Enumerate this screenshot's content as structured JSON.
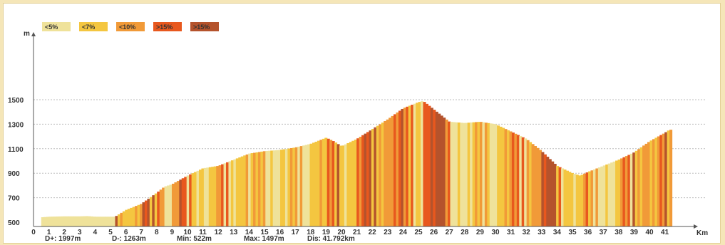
{
  "chart_data": {
    "type": "area",
    "ylabel": "m",
    "xlabel": "Km",
    "yticks": [
      500,
      700,
      900,
      1100,
      1300,
      1500
    ],
    "xticks": [
      0,
      1,
      2,
      3,
      4,
      5,
      6,
      7,
      8,
      9,
      10,
      11,
      12,
      13,
      14,
      15,
      16,
      17,
      18,
      19,
      20,
      21,
      22,
      23,
      24,
      25,
      26,
      27,
      28,
      29,
      30,
      31,
      32,
      33,
      34,
      35,
      36,
      37,
      38,
      39,
      40,
      41
    ],
    "ylim": [
      500,
      1500
    ],
    "xlim": [
      0,
      42
    ],
    "grid": true,
    "legend": {
      "placement": "top-left",
      "items": [
        {
          "label": "<5%",
          "color": "#efe29a"
        },
        {
          "label": "<7%",
          "color": "#f4c640"
        },
        {
          "label": "<10%",
          "color": "#f19a38"
        },
        {
          "label": ">15%",
          "color": "#e8581e"
        },
        {
          "label": ">15%",
          "color": "#b5532c"
        }
      ]
    },
    "profile": {
      "x": [
        0.5,
        1,
        2,
        3,
        3.5,
        4,
        5,
        5.3,
        6,
        7,
        8,
        8.5,
        9,
        10,
        11,
        12,
        13,
        14,
        15,
        16,
        17,
        18,
        19,
        19.5,
        20,
        21,
        22,
        23,
        24,
        25,
        25.3,
        26,
        27,
        28,
        29,
        30,
        31,
        32,
        33,
        34,
        35,
        35.5,
        36,
        37,
        38,
        39,
        40,
        41,
        41.3
      ],
      "y": [
        540,
        545,
        548,
        548,
        550,
        545,
        545,
        545,
        600,
        650,
        740,
        790,
        810,
        880,
        940,
        960,
        1010,
        1060,
        1080,
        1090,
        1110,
        1140,
        1190,
        1160,
        1120,
        1180,
        1260,
        1340,
        1430,
        1480,
        1490,
        1420,
        1320,
        1310,
        1320,
        1300,
        1240,
        1180,
        1080,
        960,
        900,
        880,
        910,
        960,
        1010,
        1070,
        1160,
        1230,
        1255
      ]
    },
    "stats": {
      "d_plus": "D+: 1997m",
      "d_minus": "D-: 1263m",
      "min": "Min: 522m",
      "max": "Max: 1497m",
      "dist": "Dis: 41.792km"
    }
  }
}
